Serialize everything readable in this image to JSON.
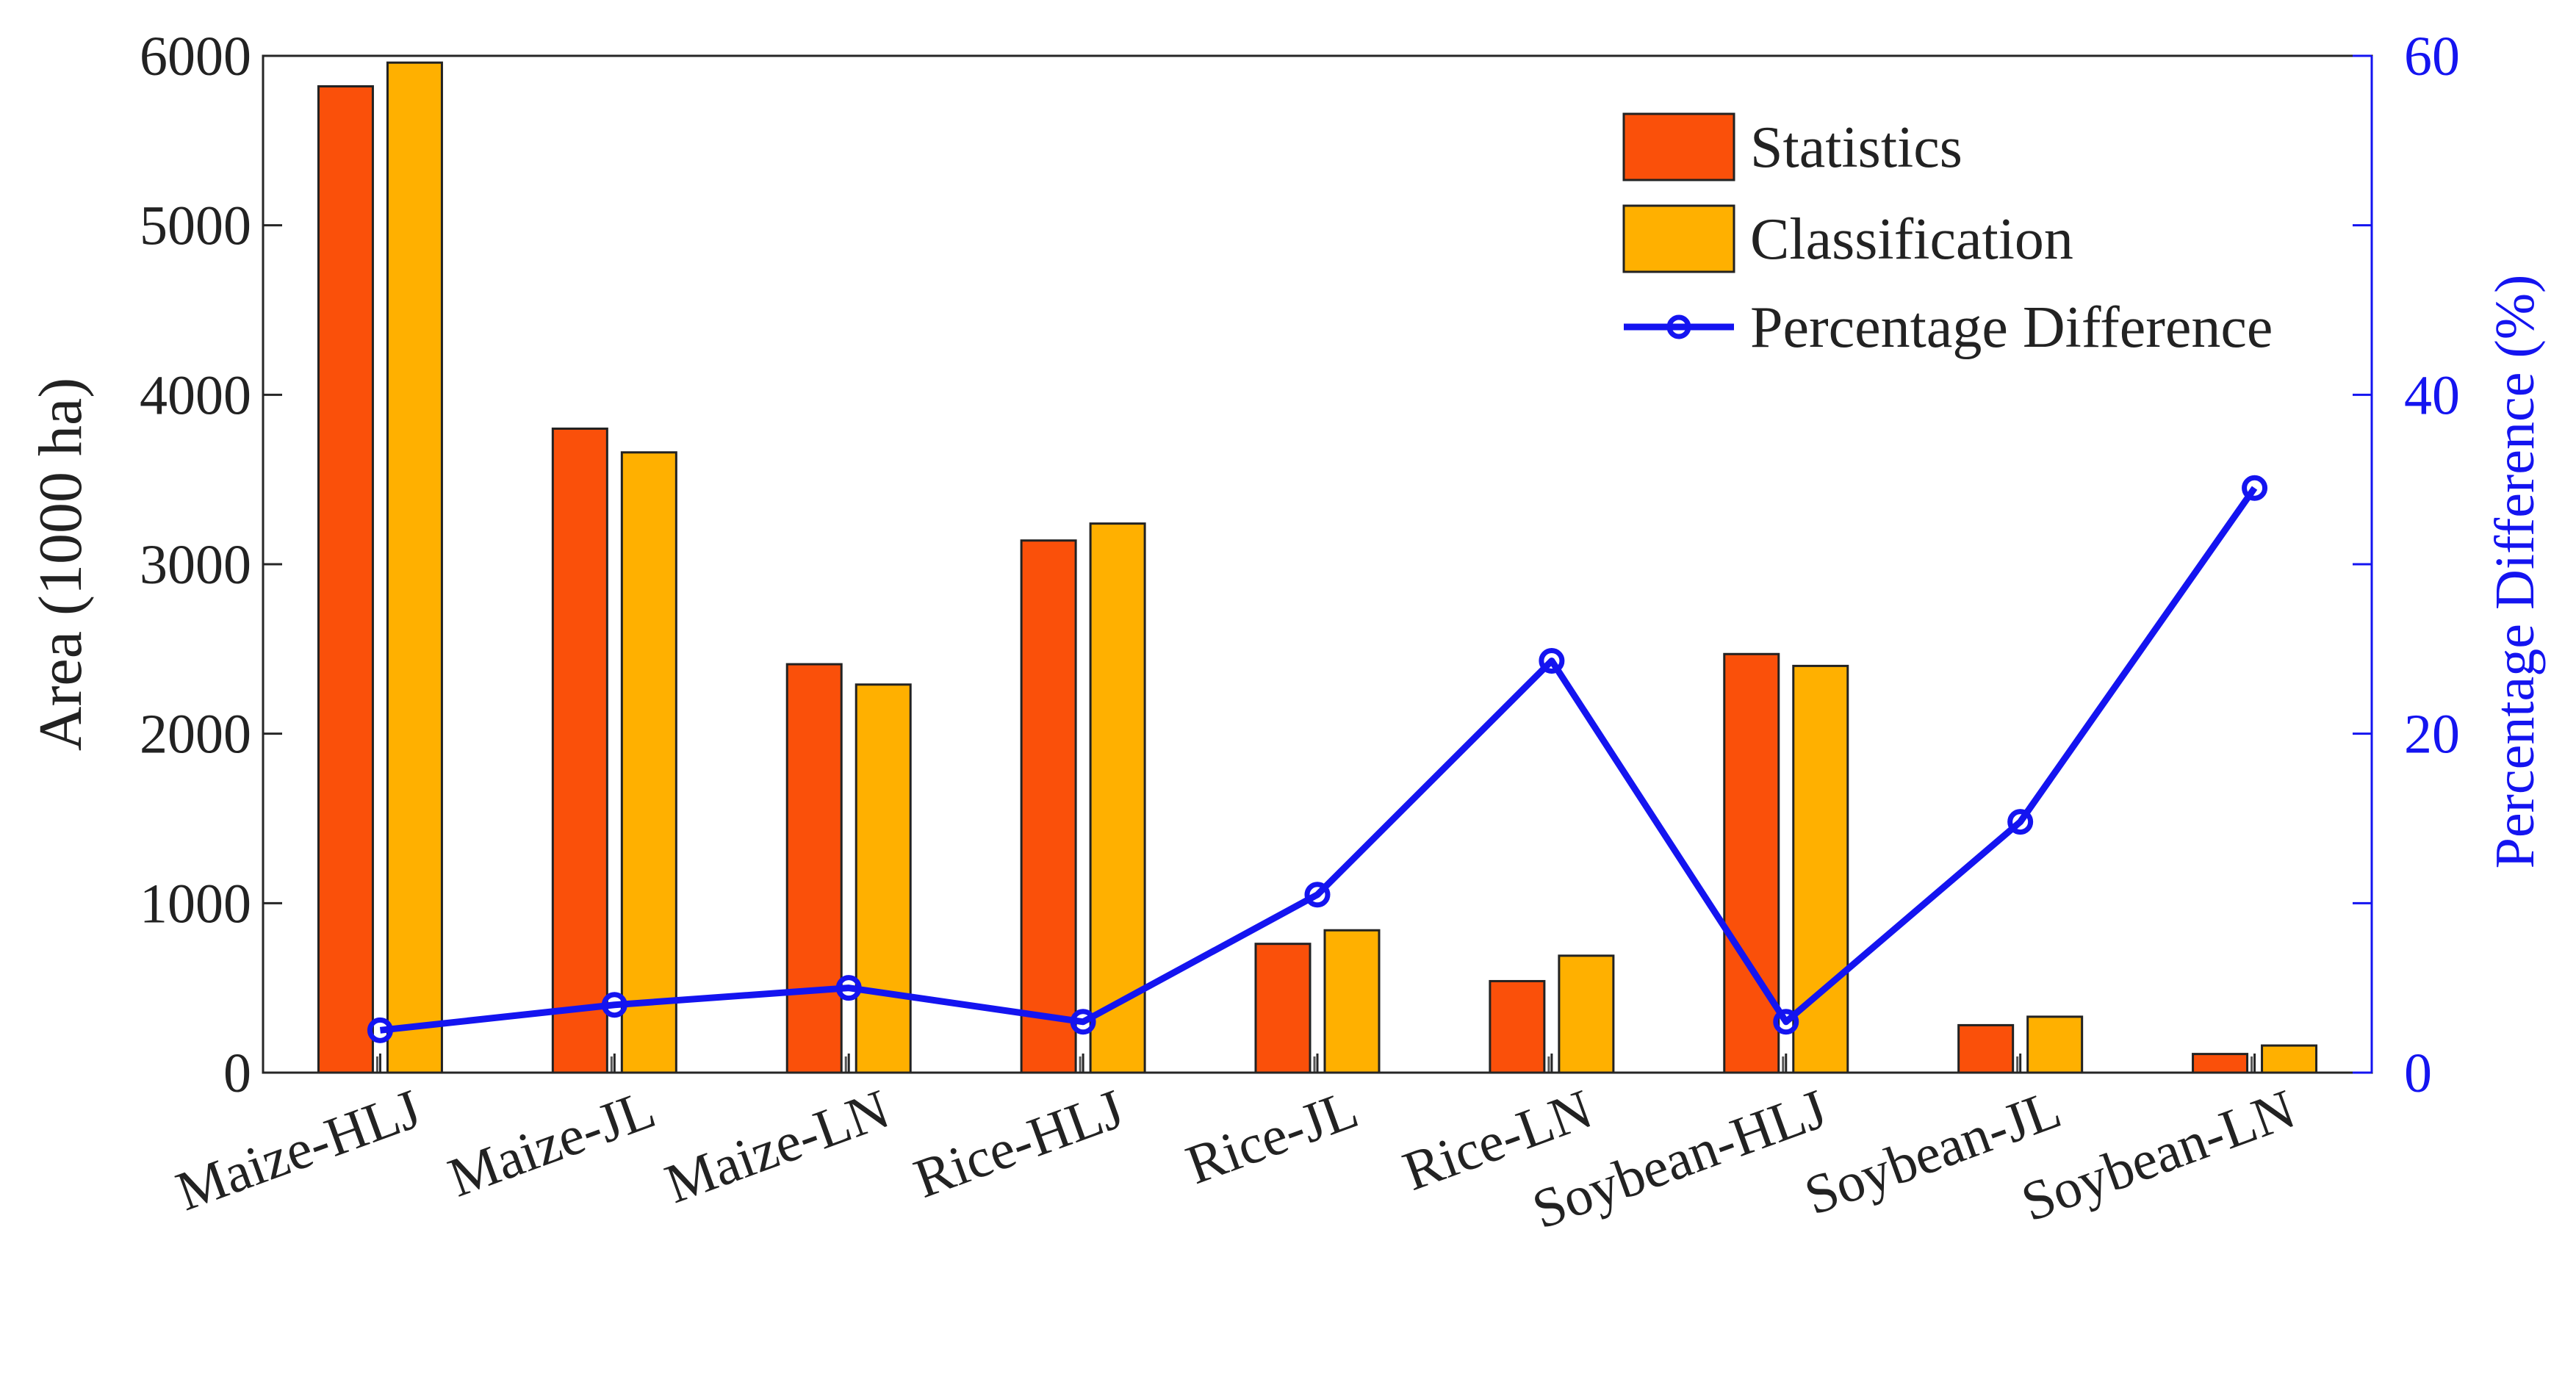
{
  "chart_data": {
    "type": "bar",
    "categories": [
      "Maize-HLJ",
      "Maize-JL",
      "Maize-LN",
      "Rice-HLJ",
      "Rice-JL",
      "Rice-LN",
      "Soybean-HLJ",
      "Soybean-JL",
      "Soybean-LN"
    ],
    "series": [
      {
        "name": "Statistics",
        "type": "bar",
        "axis": "left",
        "color": "#fa500a",
        "values": [
          5820,
          3800,
          2410,
          3140,
          760,
          540,
          2470,
          280,
          110
        ]
      },
      {
        "name": "Classification",
        "type": "bar",
        "axis": "left",
        "color": "#ffb000",
        "values": [
          5960,
          3660,
          2290,
          3240,
          840,
          690,
          2400,
          330,
          160
        ]
      },
      {
        "name": "Percentage Difference",
        "type": "line",
        "axis": "right",
        "color": "#1414f0",
        "values": [
          2.5,
          4.0,
          5.0,
          3.0,
          10.5,
          24.3,
          3.0,
          14.8,
          34.5
        ]
      }
    ],
    "title": "",
    "xlabel": "",
    "ylabel": "Area (1000 ha)",
    "y2label": "Percentage Difference (%)",
    "ylim": [
      0,
      6000
    ],
    "y2lim": [
      0,
      60
    ],
    "yticks": [
      "0",
      "1000",
      "2000",
      "3000",
      "4000",
      "5000",
      "6000"
    ],
    "y2ticks": [
      "0",
      "20",
      "40",
      "60"
    ],
    "grid": false,
    "legend_position": "top-right"
  }
}
